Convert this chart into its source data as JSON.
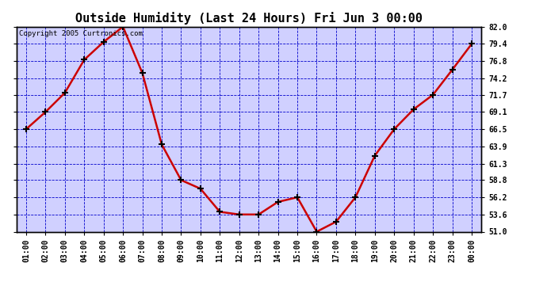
{
  "title": "Outside Humidity (Last 24 Hours) Fri Jun 3 00:00",
  "copyright": "Copyright 2005 Curtronics.com",
  "x_labels": [
    "01:00",
    "02:00",
    "03:00",
    "04:00",
    "05:00",
    "06:00",
    "07:00",
    "08:00",
    "09:00",
    "10:00",
    "11:00",
    "12:00",
    "13:00",
    "14:00",
    "15:00",
    "16:00",
    "17:00",
    "18:00",
    "19:00",
    "20:00",
    "21:00",
    "22:00",
    "23:00",
    "00:00"
  ],
  "x_values": [
    1,
    2,
    3,
    4,
    5,
    6,
    7,
    8,
    9,
    10,
    11,
    12,
    13,
    14,
    15,
    16,
    17,
    18,
    19,
    20,
    21,
    22,
    23,
    24
  ],
  "y_values": [
    66.5,
    69.1,
    72.0,
    77.0,
    79.7,
    82.0,
    75.0,
    64.2,
    58.8,
    57.5,
    54.0,
    53.6,
    53.6,
    55.5,
    56.2,
    51.0,
    52.5,
    56.2,
    62.5,
    66.5,
    69.5,
    71.7,
    75.5,
    79.4
  ],
  "y_ticks": [
    51.0,
    53.6,
    56.2,
    58.8,
    61.3,
    63.9,
    66.5,
    69.1,
    71.7,
    74.2,
    76.8,
    79.4,
    82.0
  ],
  "ylim": [
    51.0,
    82.0
  ],
  "xlim": [
    0.5,
    24.5
  ],
  "line_color": "#cc0000",
  "marker_color": "#000000",
  "fig_bg_color": "#ffffff",
  "plot_bg_color": "#d0d0ff",
  "grid_color": "#0000cc",
  "border_color": "#000000",
  "title_fontsize": 11,
  "tick_fontsize": 7,
  "copyright_fontsize": 6.5
}
